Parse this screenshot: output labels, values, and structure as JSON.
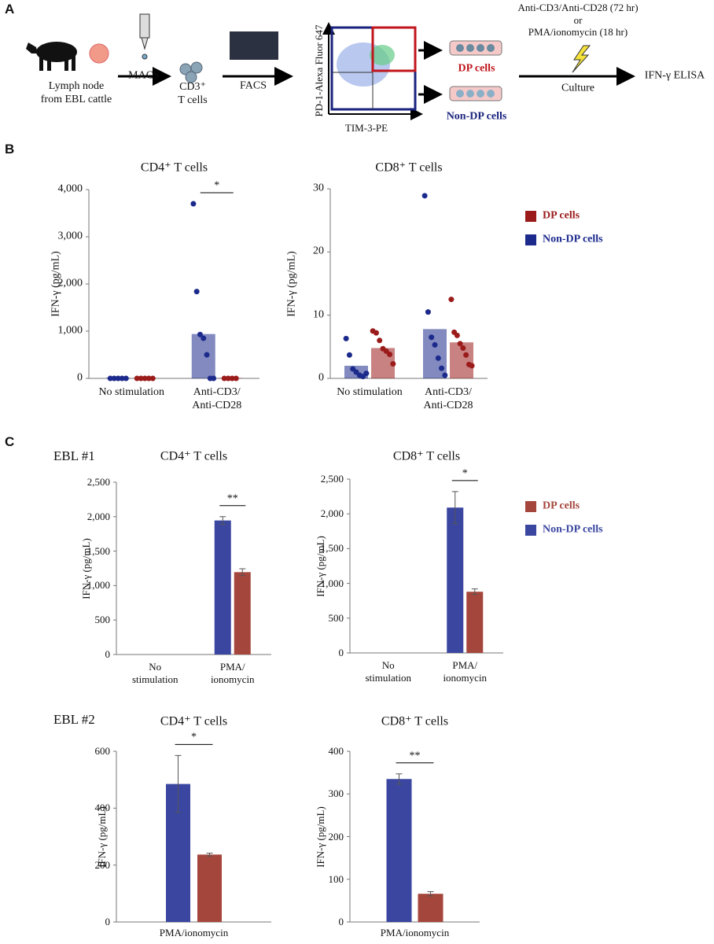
{
  "panel_a": {
    "label": "A",
    "source": "Lymph node\nfrom EBL cattle",
    "step1": "MACS",
    "cells": "CD3⁺\nT cells",
    "step2": "FACS",
    "y_axis": "PD-1-Alexa Fluor 647",
    "x_axis": "TIM-3-PE",
    "dp": "DP cells",
    "non_dp": "Non-DP cells",
    "stimulation": "Anti-CD3/Anti-CD28 (72 hr)\nor\nPMA/ionomycin (18 hr)",
    "step3": "Culture",
    "readout": "IFN-γ ELISA"
  },
  "panel_b": {
    "label": "B"
  },
  "panel_c": {
    "label": "C",
    "rows": [
      "EBL #1",
      "EBL #2"
    ]
  },
  "chart_data": [
    {
      "type": "bar",
      "title": "CD4⁺ T cells",
      "y_label": "IFN-γ (pg/mL)",
      "categories": [
        "No stimulation",
        "Anti-CD3/\nAnti-CD28"
      ],
      "series": [
        {
          "color": "#1c2a8c",
          "values": [
            15,
            940
          ],
          "points": [
            [
              0,
              0,
              0,
              0,
              0
            ],
            [
              3700,
              1840,
              930,
              850,
              500,
              0,
              0
            ]
          ]
        },
        {
          "color": "#9b1b1b",
          "values": [
            10,
            10
          ],
          "points": [
            [
              0,
              0,
              0,
              0,
              0
            ],
            [
              0,
              0,
              0,
              0
            ]
          ]
        }
      ],
      "ylim": [
        0,
        4000
      ],
      "yticks": [
        0,
        {
          "value": 1000,
          "label": "1,000"
        },
        {
          "value": 2000,
          "label": "2,000"
        },
        {
          "value": 3000,
          "label": "3,000"
        },
        {
          "value": 4000,
          "label": "4,000"
        }
      ],
      "significance": [
        null,
        "*"
      ]
    },
    {
      "type": "bar",
      "title": "CD8⁺ T cells",
      "y_label": "IFN-γ (pg/mL)",
      "categories": [
        "No stimulation",
        "Anti-CD3/\nAnti-CD28"
      ],
      "series": [
        {
          "name": "Non-DP cells",
          "color": "#1c2a8c",
          "values": [
            2,
            7.8
          ],
          "points": [
            [
              6.3,
              3.7,
              1.5,
              1.0,
              0.5,
              0.3,
              0.8
            ],
            [
              28.9,
              10.5,
              6.5,
              5.3,
              3.2,
              1.6,
              0.5
            ]
          ]
        },
        {
          "name": "DP cells",
          "color": "#9b1b1b",
          "values": [
            4.8,
            5.7
          ],
          "points": [
            [
              7.5,
              7.2,
              6.0,
              4.7,
              4.3,
              3.8,
              2.3
            ],
            [
              12.5,
              7.3,
              6.8,
              5.5,
              4.8,
              3.7,
              2.2,
              2.0
            ]
          ]
        }
      ],
      "ylim": [
        0,
        30
      ],
      "yticks": [
        0,
        10,
        20,
        30
      ],
      "legend": "right"
    },
    {
      "type": "bar",
      "title": "CD4⁺ T cells",
      "y_label": "IFN-γ (pg/mL)",
      "categories": [
        "No\nstimulation",
        "PMA/\nionomycin"
      ],
      "series": [
        {
          "color": "#3a46a0",
          "values": [
            0,
            1945
          ],
          "errors": [
            null,
            55
          ]
        },
        {
          "color": "#a5463c",
          "values": [
            0,
            1195
          ],
          "errors": [
            null,
            50
          ]
        }
      ],
      "ylim": [
        0,
        2500
      ],
      "yticks": [
        0,
        500,
        {
          "value": 1000,
          "label": "1,000"
        },
        {
          "value": 1500,
          "label": "1,500"
        },
        {
          "value": 2000,
          "label": "2,000"
        },
        {
          "value": 2500,
          "label": "2,500"
        }
      ],
      "significance": [
        null,
        "**"
      ]
    },
    {
      "type": "bar",
      "title": "CD8⁺ T cells",
      "y_label": "IFN-γ (pg/mL)",
      "categories": [
        "No\nstimulation",
        "PMA/\nionomycin"
      ],
      "series": [
        {
          "name": "Non-DP cells",
          "color": "#3a46a0",
          "values": [
            0,
            2090
          ],
          "errors": [
            null,
            230
          ]
        },
        {
          "name": "DP cells",
          "color": "#a5463c",
          "values": [
            0,
            880
          ],
          "errors": [
            null,
            40
          ]
        }
      ],
      "ylim": [
        0,
        2500
      ],
      "yticks": [
        0,
        500,
        {
          "value": 1000,
          "label": "1,000"
        },
        {
          "value": 1500,
          "label": "1,500"
        },
        {
          "value": 2000,
          "label": "2,000"
        },
        {
          "value": 2500,
          "label": "2,500"
        }
      ],
      "significance": [
        null,
        "*"
      ],
      "legend": "right"
    },
    {
      "type": "bar",
      "title": "CD4⁺ T cells",
      "y_label": "IFN-γ (pg/mL)",
      "categories": [
        "PMA/ionomycin"
      ],
      "series": [
        {
          "color": "#3a46a0",
          "values": [
            485
          ],
          "errors": [
            100
          ]
        },
        {
          "color": "#a5463c",
          "values": [
            237
          ],
          "errors": [
            5
          ]
        }
      ],
      "ylim": [
        0,
        600
      ],
      "yticks": [
        0,
        200,
        400,
        600
      ],
      "significance": [
        "*"
      ]
    },
    {
      "type": "bar",
      "title": "CD8⁺ T cells",
      "y_label": "IFN-γ (pg/mL)",
      "categories": [
        "PMA/ionomycin"
      ],
      "series": [
        {
          "color": "#3a46a0",
          "values": [
            335
          ],
          "errors": [
            12
          ]
        },
        {
          "color": "#a5463c",
          "values": [
            66
          ],
          "errors": [
            5
          ]
        }
      ],
      "ylim": [
        0,
        400
      ],
      "yticks": [
        0,
        100,
        200,
        300,
        400
      ],
      "significance": [
        "**"
      ]
    }
  ]
}
